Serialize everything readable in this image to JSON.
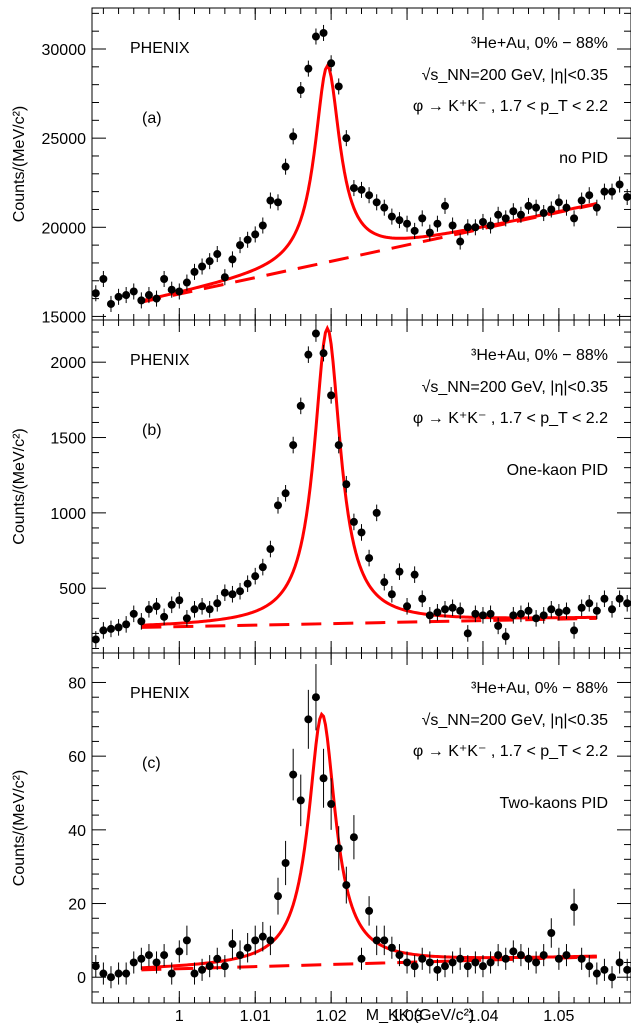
{
  "chart_data": [
    {
      "type": "scatter",
      "panel_label": "(a)",
      "experiment": "PHENIX",
      "system_label": "³He+Au, 0% − 88%",
      "energy_label": "√s_NN=200 GeV, |η|<0.35",
      "decay_label": "φ → K⁺K⁻ , 1.7 < p_T < 2.2",
      "pid_label": "no PID",
      "ylabel": "Counts/(MeV/c²)",
      "xlabel": "M_KK (GeV/c²)",
      "xlim": [
        0.9885,
        1.0595
      ],
      "ylim": [
        14800,
        32300
      ],
      "yticks": [
        15000,
        20000,
        25000,
        30000
      ],
      "xticks": [
        1.0,
        1.01,
        1.02,
        1.03,
        1.04,
        1.05
      ],
      "peak": {
        "mass": 1.0195,
        "width": 0.004,
        "amplitude": 11000
      },
      "background": {
        "x1": 0.995,
        "y1": 15800,
        "x2": 1.055,
        "y2": 21300
      },
      "series": [
        {
          "x": [
            0.989,
            0.99,
            0.991,
            0.992,
            0.993,
            0.994,
            0.995,
            0.996,
            0.997,
            0.998,
            0.999,
            1.0,
            1.001,
            1.002,
            1.003,
            1.004,
            1.005,
            1.006,
            1.007,
            1.008,
            1.009,
            1.01,
            1.011,
            1.012,
            1.013,
            1.014,
            1.015,
            1.016,
            1.017,
            1.018,
            1.019,
            1.02,
            1.021,
            1.022,
            1.023,
            1.024,
            1.025,
            1.026,
            1.027,
            1.028,
            1.029,
            1.03,
            1.031,
            1.032,
            1.033,
            1.034,
            1.035,
            1.036,
            1.037,
            1.038,
            1.039,
            1.04,
            1.041,
            1.042,
            1.043,
            1.044,
            1.045,
            1.046,
            1.047,
            1.048,
            1.049,
            1.05,
            1.051,
            1.052,
            1.053,
            1.054,
            1.055,
            1.056,
            1.057,
            1.058,
            1.059
          ],
          "y": [
            16300,
            17100,
            15700,
            16100,
            16200,
            16400,
            15900,
            16200,
            16000,
            17100,
            16500,
            16400,
            16900,
            17500,
            17800,
            18100,
            18500,
            17200,
            18200,
            19000,
            19300,
            19600,
            20100,
            21500,
            21400,
            23400,
            25100,
            27700,
            28900,
            30700,
            30900,
            29200,
            27900,
            25000,
            22200,
            22100,
            21800,
            21400,
            21100,
            20600,
            20400,
            20200,
            19800,
            20500,
            19700,
            20200,
            21200,
            20100,
            19200,
            20000,
            20000,
            20300,
            20100,
            20700,
            20500,
            20900,
            20700,
            21200,
            21100,
            20800,
            21000,
            21400,
            21100,
            20500,
            21500,
            21800,
            21100,
            22000,
            22000,
            22400,
            21700
          ],
          "yerr": 450
        }
      ]
    },
    {
      "type": "scatter",
      "panel_label": "(b)",
      "experiment": "PHENIX",
      "system_label": "³He+Au, 0% − 88%",
      "energy_label": "√s_NN=200 GeV, |η|<0.35",
      "decay_label": "φ → K⁺K⁻ , 1.7 < p_T < 2.2",
      "pid_label": "One-kaon PID",
      "ylabel": "Counts/(MeV/c²)",
      "xlim": [
        0.9885,
        1.0595
      ],
      "ylim": [
        70,
        2280
      ],
      "yticks": [
        500,
        1000,
        1500,
        2000
      ],
      "xticks": [
        1.0,
        1.01,
        1.02,
        1.03,
        1.04,
        1.05
      ],
      "peak": {
        "mass": 1.0195,
        "width": 0.0042,
        "amplitude": 1960
      },
      "background": {
        "x1": 0.995,
        "y1": 240,
        "x2": 1.055,
        "y2": 300
      },
      "series": [
        {
          "x": [
            0.989,
            0.99,
            0.991,
            0.992,
            0.993,
            0.994,
            0.995,
            0.996,
            0.997,
            0.998,
            0.999,
            1.0,
            1.001,
            1.002,
            1.003,
            1.004,
            1.005,
            1.006,
            1.007,
            1.008,
            1.009,
            1.01,
            1.011,
            1.012,
            1.013,
            1.014,
            1.015,
            1.016,
            1.017,
            1.018,
            1.019,
            1.02,
            1.021,
            1.022,
            1.023,
            1.024,
            1.025,
            1.026,
            1.027,
            1.028,
            1.029,
            1.03,
            1.031,
            1.032,
            1.033,
            1.034,
            1.035,
            1.036,
            1.037,
            1.038,
            1.039,
            1.04,
            1.041,
            1.042,
            1.043,
            1.044,
            1.045,
            1.046,
            1.047,
            1.048,
            1.049,
            1.05,
            1.051,
            1.052,
            1.053,
            1.054,
            1.055,
            1.056,
            1.057,
            1.058,
            1.059
          ],
          "y": [
            160,
            220,
            230,
            240,
            260,
            330,
            280,
            360,
            380,
            310,
            390,
            420,
            300,
            360,
            380,
            360,
            400,
            470,
            460,
            480,
            530,
            580,
            640,
            760,
            1050,
            1130,
            1450,
            1710,
            2050,
            2190,
            2060,
            1780,
            1450,
            1190,
            940,
            870,
            700,
            1000,
            540,
            460,
            610,
            380,
            590,
            430,
            320,
            340,
            360,
            370,
            350,
            200,
            330,
            320,
            330,
            250,
            180,
            320,
            330,
            350,
            300,
            320,
            360,
            340,
            350,
            220,
            370,
            400,
            350,
            430,
            360,
            430,
            400
          ],
          "yerr": 55
        }
      ]
    },
    {
      "type": "scatter",
      "panel_label": "(c)",
      "experiment": "PHENIX",
      "system_label": "³He+Au, 0% − 88%",
      "energy_label": "√s_NN=200 GeV, |η|<0.35",
      "decay_label": "φ → K⁺K⁻ , 1.7 < p_T < 2.2",
      "pid_label": "Two-kaons PID",
      "ylabel": "Counts/(MeV/c²)",
      "xlabel": "M_KK (GeV/c²)",
      "xlim": [
        0.9885,
        1.0595
      ],
      "ylim": [
        -7,
        88
      ],
      "yticks": [
        0,
        20,
        40,
        60,
        80
      ],
      "xticks": [
        1.0,
        1.01,
        1.02,
        1.03,
        1.04,
        1.05
      ],
      "xtick_labels": [
        "1",
        "1.01",
        "1.02",
        "1.03",
        "1.04",
        "1.05"
      ],
      "peak": {
        "mass": 1.0188,
        "width": 0.0043,
        "amplitude": 68
      },
      "background": {
        "x1": 0.995,
        "y1": 2.0,
        "x2": 1.055,
        "y2": 5.5
      },
      "series": [
        {
          "x": [
            0.989,
            0.99,
            0.991,
            0.992,
            0.993,
            0.994,
            0.995,
            0.996,
            0.997,
            0.998,
            0.999,
            1.0,
            1.001,
            1.002,
            1.003,
            1.004,
            1.005,
            1.006,
            1.007,
            1.008,
            1.009,
            1.01,
            1.011,
            1.012,
            1.013,
            1.014,
            1.015,
            1.016,
            1.017,
            1.018,
            1.019,
            1.02,
            1.021,
            1.022,
            1.023,
            1.024,
            1.025,
            1.026,
            1.027,
            1.028,
            1.029,
            1.03,
            1.031,
            1.032,
            1.033,
            1.034,
            1.035,
            1.036,
            1.037,
            1.038,
            1.039,
            1.04,
            1.041,
            1.042,
            1.043,
            1.044,
            1.045,
            1.046,
            1.047,
            1.048,
            1.049,
            1.05,
            1.051,
            1.052,
            1.053,
            1.054,
            1.055,
            1.056,
            1.057,
            1.058,
            1.059
          ],
          "y": [
            3,
            1,
            0,
            1,
            1,
            4,
            5,
            6,
            4,
            6,
            1,
            7,
            10,
            1,
            2,
            3,
            5,
            3,
            9,
            6,
            8,
            10,
            11,
            10,
            22,
            31,
            55,
            48,
            70,
            76,
            54,
            47,
            35,
            25,
            38,
            5,
            18,
            10,
            10,
            8,
            6,
            4,
            3,
            5,
            4,
            2,
            3,
            4,
            5,
            3,
            4,
            3,
            4,
            6,
            5,
            7,
            6,
            5,
            4,
            6,
            12,
            5,
            6,
            19,
            5,
            3,
            1,
            2,
            0,
            4,
            2
          ],
          "yerr": [
            3,
            3,
            3,
            3,
            3,
            3,
            3,
            3,
            3,
            3,
            3,
            3,
            4,
            3,
            3,
            3,
            3,
            3,
            4,
            4,
            4,
            4,
            4,
            4,
            5,
            6,
            7,
            7,
            8,
            9,
            8,
            7,
            6,
            5,
            6,
            3,
            4,
            4,
            4,
            3,
            3,
            3,
            3,
            3,
            3,
            3,
            3,
            3,
            3,
            3,
            3,
            3,
            3,
            3,
            3,
            3,
            3,
            3,
            3,
            3,
            4,
            3,
            3,
            5,
            3,
            3,
            3,
            3,
            3,
            3,
            3
          ]
        }
      ]
    }
  ]
}
